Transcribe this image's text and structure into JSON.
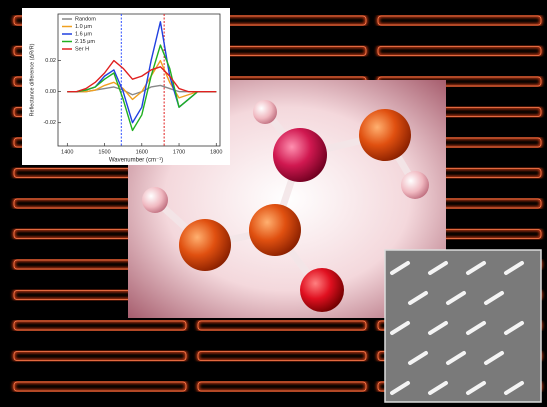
{
  "chart_data": {
    "type": "line",
    "x_label": "Wavenumber (cm⁻¹)",
    "y_label": "Reflectance difference (ΔR/R)",
    "x": [
      1400,
      1425,
      1450,
      1475,
      1500,
      1525,
      1550,
      1575,
      1600,
      1625,
      1650,
      1675,
      1700,
      1725,
      1750,
      1775,
      1800
    ],
    "series": [
      {
        "name": "Random",
        "color": "#888888",
        "values": [
          0,
          0,
          0,
          0.001,
          0.002,
          0.003,
          0.001,
          -0.002,
          0,
          0.003,
          0.004,
          0.002,
          0,
          0,
          0,
          0,
          0
        ]
      },
      {
        "name": "1.0 μm",
        "color": "#f0a020",
        "values": [
          0,
          0,
          0,
          0.001,
          0.004,
          0.006,
          0.002,
          -0.005,
          0,
          0.01,
          0.02,
          0.006,
          -0.004,
          -0.002,
          0,
          0,
          0
        ]
      },
      {
        "name": "1.6 μm",
        "color": "#2040e0",
        "values": [
          0,
          0,
          0.001,
          0.003,
          0.01,
          0.014,
          0,
          -0.02,
          -0.01,
          0.02,
          0.045,
          0.01,
          -0.01,
          -0.005,
          0,
          0,
          0
        ]
      },
      {
        "name": "2.15 μm",
        "color": "#20b020",
        "values": [
          0,
          0,
          0.001,
          0.003,
          0.008,
          0.012,
          -0.005,
          -0.025,
          -0.015,
          0.01,
          0.03,
          0.015,
          -0.01,
          -0.005,
          0,
          0,
          0
        ]
      },
      {
        "name": "Ser H",
        "color": "#e02020",
        "values": [
          0,
          0,
          0.002,
          0.006,
          0.012,
          0.02,
          0.015,
          0.008,
          0.01,
          0.014,
          0.016,
          0.01,
          0.002,
          0,
          0,
          0,
          0
        ]
      }
    ],
    "vlines": [
      {
        "x": 1545,
        "color": "#3050ff"
      },
      {
        "x": 1660,
        "color": "#e02020"
      }
    ],
    "xlim": [
      1375,
      1810
    ],
    "xticks": [
      1400,
      1500,
      1600,
      1700,
      1800
    ],
    "ylim": [
      -0.035,
      0.05
    ],
    "yticks": [
      -0.02,
      {
        "value": 0,
        "label": "0.00"
      },
      0.02
    ],
    "legend": "upper-left"
  }
}
